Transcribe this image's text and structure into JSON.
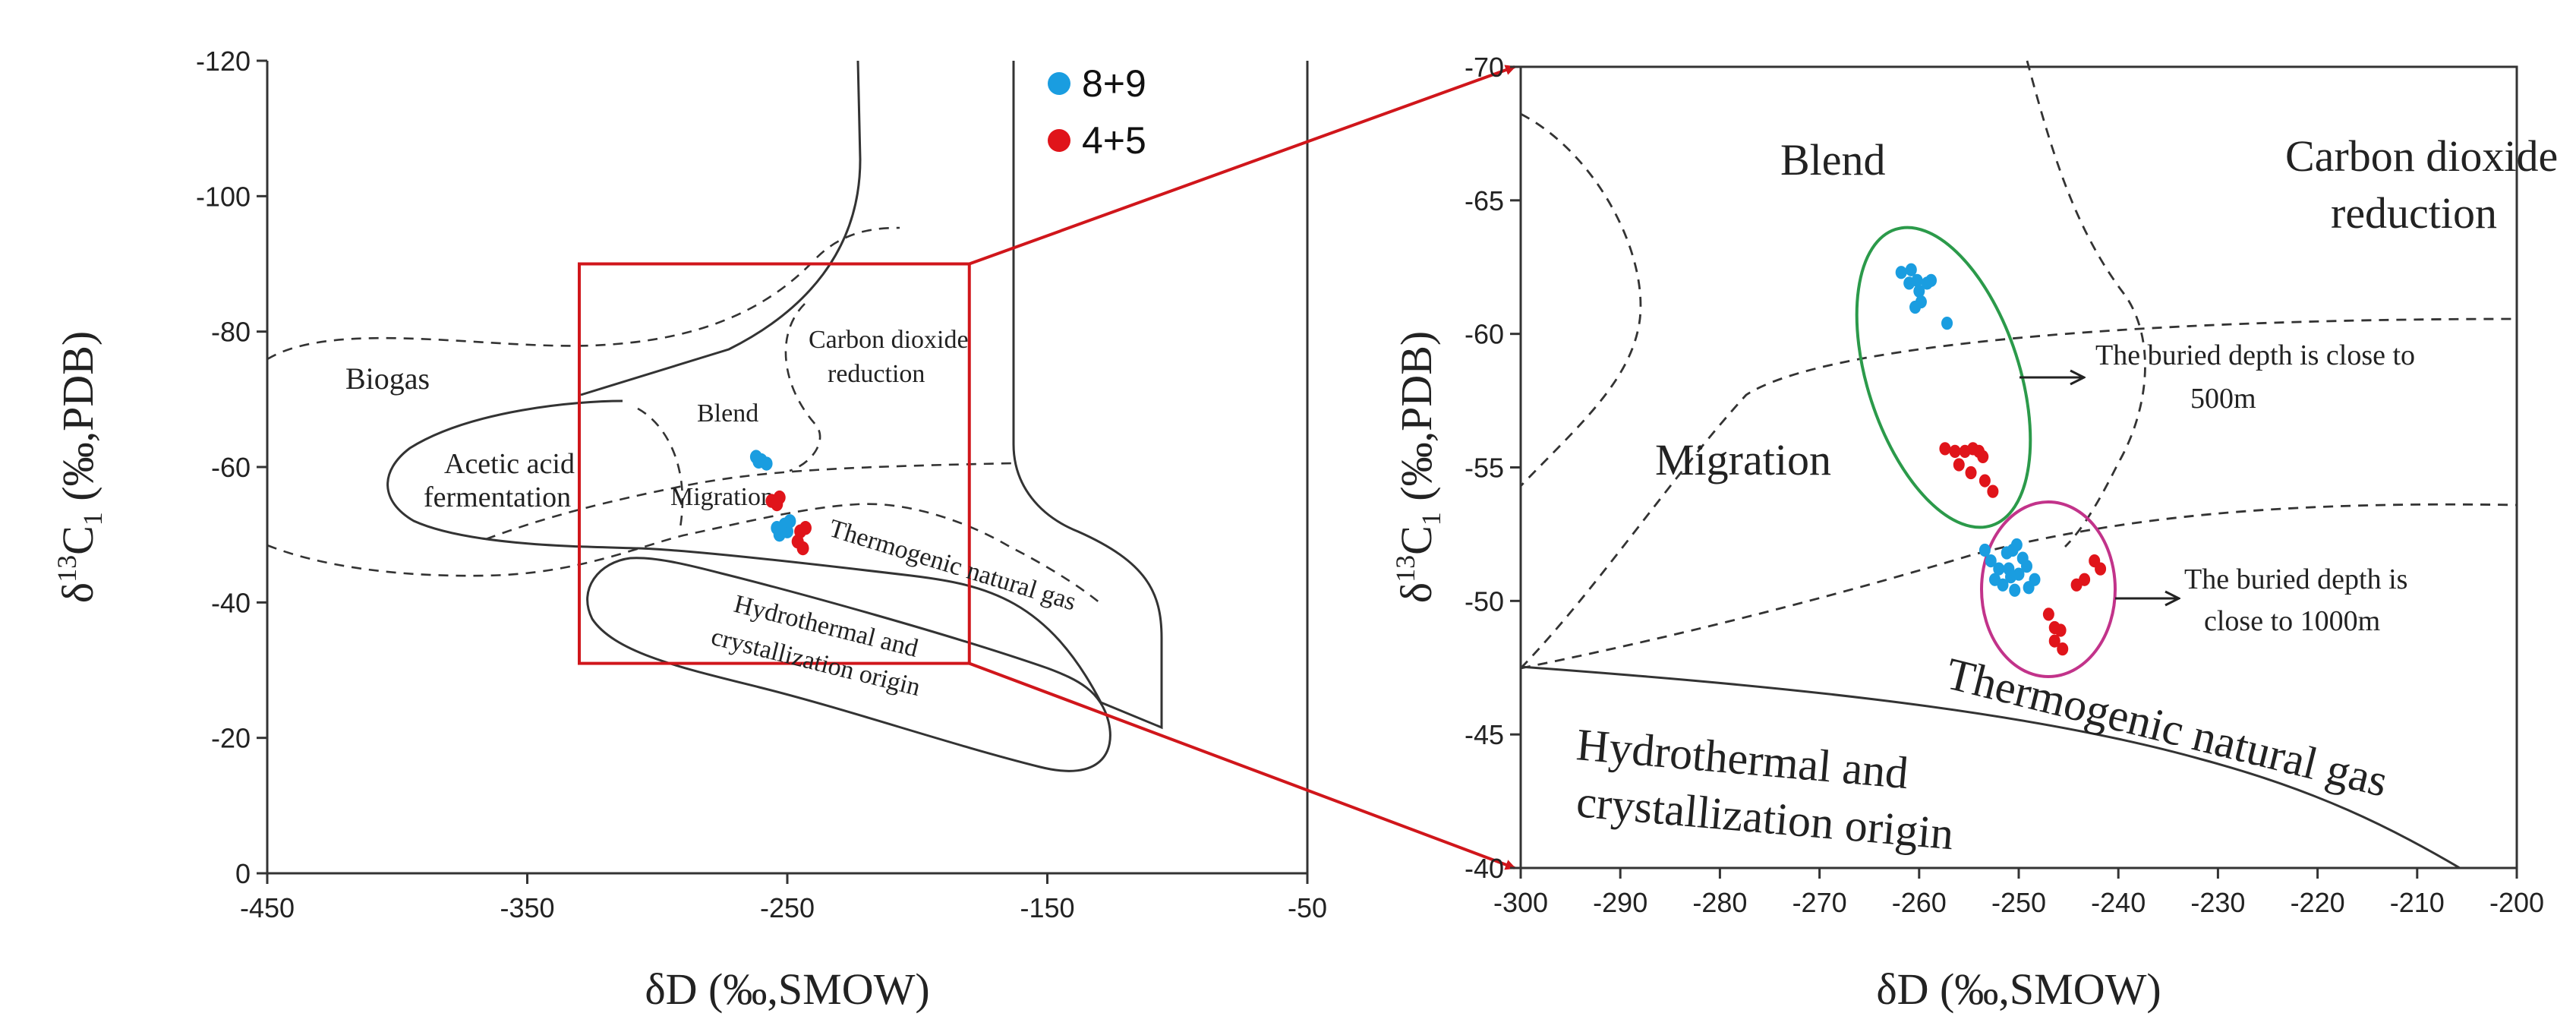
{
  "chart_data": [
    {
      "type": "scatter",
      "panel": "left",
      "xlabel": "δD (‰,SMOW)",
      "ylabel_parts": {
        "delta": "δ",
        "sup": "13",
        "main": "C",
        "sub": "1",
        "rest": " (‰,PDB)"
      },
      "xlim": [
        -450,
        -50
      ],
      "ylim": [
        0,
        -120
      ],
      "xticks": [
        -450,
        -350,
        -250,
        -150,
        -50
      ],
      "yticks": [
        0,
        -20,
        -40,
        -60,
        -80,
        -100,
        -120
      ],
      "ytick_labels": [
        "0",
        "-20",
        "-40",
        "-60",
        "-80",
        "-100",
        "-120"
      ],
      "legend": [
        {
          "name": "8+9",
          "color": "#1a9de0"
        },
        {
          "name": "4+5",
          "color": "#e0141a"
        }
      ],
      "region_labels": {
        "biogas": "Biogas",
        "acetic1": "Acetic acid",
        "acetic2": "fermentation",
        "blend": "Blend",
        "migration": "Migration",
        "co2_1": "Carbon dioxide",
        "co2_2": "reduction",
        "thermo": "Thermogenic natural gas",
        "hydro1": "Hydrothermal and",
        "hydro2": "crystallization origin"
      },
      "zoom_box": {
        "x": [
          -330,
          -180
        ],
        "y": [
          -31,
          -90
        ]
      },
      "series": [
        {
          "name": "8+9",
          "color": "#1a9de0",
          "points": [
            [
              -262,
              -61.5
            ],
            [
              -260,
              -61
            ],
            [
              -258,
              -60.5
            ],
            [
              -261,
              -60.8
            ],
            [
              -252,
              -51
            ],
            [
              -250,
              -50.5
            ],
            [
              -253,
              -50
            ],
            [
              -251,
              -51.5
            ],
            [
              -249,
              -52
            ],
            [
              -254,
              -51
            ]
          ]
        },
        {
          "name": "4+5",
          "color": "#e0141a",
          "points": [
            [
              -256,
              -55
            ],
            [
              -254,
              -54.5
            ],
            [
              -253,
              -55.5
            ],
            [
              -245,
              -50.5
            ],
            [
              -243,
              -51
            ],
            [
              -246,
              -49
            ],
            [
              -244,
              -48
            ]
          ]
        }
      ]
    },
    {
      "type": "scatter",
      "panel": "right",
      "xlabel": "δD (‰,SMOW)",
      "ylabel_parts": {
        "delta": "δ",
        "sup": "13",
        "main": "C",
        "sub": "1",
        "rest": " (‰,PDB)"
      },
      "xlim": [
        -300,
        -200
      ],
      "ylim": [
        -40,
        -70
      ],
      "xticks": [
        -300,
        -290,
        -280,
        -270,
        -260,
        -250,
        -240,
        -230,
        -220,
        -210,
        -200
      ],
      "yticks": [
        -40,
        -45,
        -50,
        -55,
        -60,
        -65,
        -70
      ],
      "ytick_labels": [
        "-40",
        "-45",
        "-50",
        "-55",
        "-60",
        "-65",
        "-70"
      ],
      "region_labels": {
        "blend": "Blend",
        "co2_1": "Carbon dioxide",
        "co2_2": "reduction",
        "migration": "Migration",
        "thermo": "Thermogenic natural gas",
        "hydro1": "Hydrothermal and",
        "hydro2": "crystallization origin"
      },
      "annotations": {
        "a1_line1": "The buried depth is close to",
        "a1_line2": "500m",
        "a2_line1": "The buried depth is",
        "a2_line2": "close to 1000m"
      },
      "series": [
        {
          "name": "8+9",
          "color": "#1a9de0",
          "points": [
            [
              -261.8,
              -62.3
            ],
            [
              -260.8,
              -62.4
            ],
            [
              -260.2,
              -62.0
            ],
            [
              -261.0,
              -61.9
            ],
            [
              -260.0,
              -61.6
            ],
            [
              -259.2,
              -61.9
            ],
            [
              -258.8,
              -62.0
            ],
            [
              -259.8,
              -61.2
            ],
            [
              -260.4,
              -61.0
            ],
            [
              -257.2,
              -60.4
            ],
            [
              -252.8,
              -51.5
            ],
            [
              -252.0,
              -51.2
            ],
            [
              -251.2,
              -51.8
            ],
            [
              -250.6,
              -51.9
            ],
            [
              -250.2,
              -52.1
            ],
            [
              -251.0,
              -51.2
            ],
            [
              -250.0,
              -51.0
            ],
            [
              -249.6,
              -51.6
            ],
            [
              -250.8,
              -50.9
            ],
            [
              -252.4,
              -50.8
            ],
            [
              -251.6,
              -50.6
            ],
            [
              -249.2,
              -51.3
            ],
            [
              -248.4,
              -50.8
            ],
            [
              -253.4,
              -51.9
            ],
            [
              -250.4,
              -50.4
            ],
            [
              -249.0,
              -50.5
            ]
          ]
        },
        {
          "name": "4+5",
          "color": "#e0141a",
          "points": [
            [
              -257.4,
              -55.7
            ],
            [
              -256.4,
              -55.6
            ],
            [
              -255.4,
              -55.6
            ],
            [
              -254.6,
              -55.7
            ],
            [
              -254.0,
              -55.6
            ],
            [
              -253.6,
              -55.4
            ],
            [
              -256.0,
              -55.1
            ],
            [
              -254.8,
              -54.8
            ],
            [
              -253.4,
              -54.5
            ],
            [
              -252.6,
              -54.1
            ],
            [
              -247.0,
              -49.5
            ],
            [
              -246.4,
              -49.0
            ],
            [
              -245.8,
              -48.9
            ],
            [
              -246.4,
              -48.5
            ],
            [
              -245.6,
              -48.2
            ],
            [
              -244.2,
              -50.6
            ],
            [
              -243.4,
              -50.8
            ],
            [
              -242.4,
              -51.5
            ],
            [
              -241.8,
              -51.2
            ]
          ]
        }
      ]
    }
  ]
}
